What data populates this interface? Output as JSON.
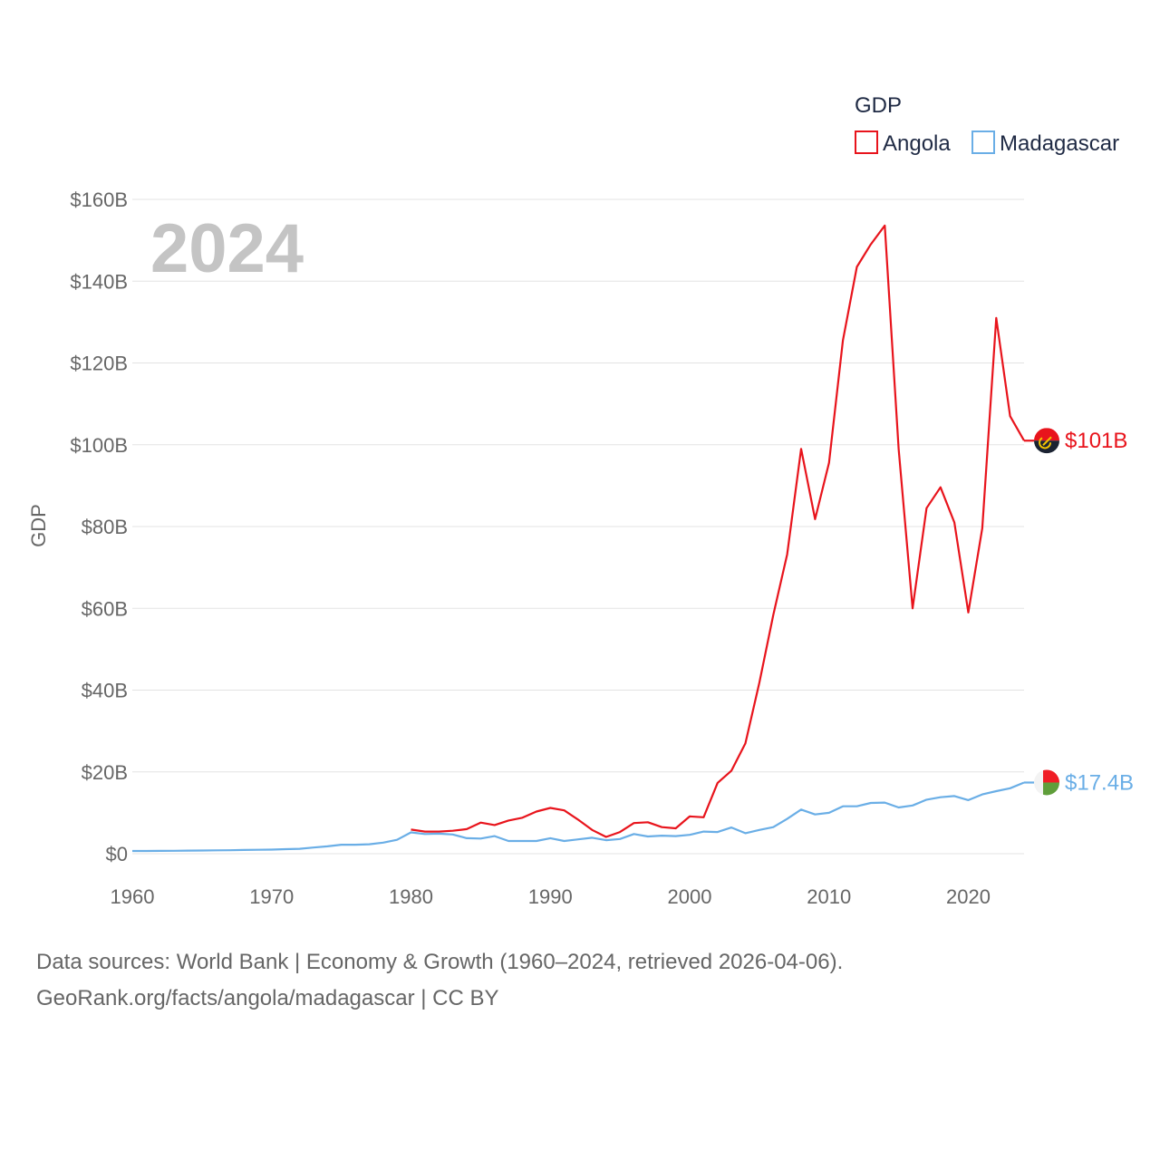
{
  "chart_data": {
    "type": "line",
    "title": "",
    "xlabel": "",
    "ylabel": "GDP",
    "year_label": "2024",
    "legend_title": "GDP",
    "legend_position": "top-right",
    "xlim": [
      1960,
      2024
    ],
    "ylim": [
      0,
      160
    ],
    "x_ticks": [
      1960,
      1970,
      1980,
      1990,
      2000,
      2010,
      2020
    ],
    "y_ticks": [
      0,
      20,
      40,
      60,
      80,
      100,
      120,
      140,
      160
    ],
    "y_tick_labels": [
      "$0",
      "$20B",
      "$40B",
      "$60B",
      "$80B",
      "$100B",
      "$120B",
      "$140B",
      "$160B"
    ],
    "units": "billion USD",
    "series": [
      {
        "name": "Angola",
        "color": "#e8141c",
        "end_label": "$101B",
        "flag_icon": "angola-flag-icon",
        "x": [
          1980,
          1981,
          1982,
          1983,
          1984,
          1985,
          1986,
          1987,
          1988,
          1989,
          1990,
          1991,
          1992,
          1993,
          1994,
          1995,
          1996,
          1997,
          1998,
          1999,
          2000,
          2001,
          2002,
          2003,
          2004,
          2005,
          2006,
          2007,
          2008,
          2009,
          2010,
          2011,
          2012,
          2013,
          2014,
          2015,
          2016,
          2017,
          2018,
          2019,
          2020,
          2021,
          2022,
          2023,
          2024
        ],
        "values": [
          5.9,
          5.4,
          5.4,
          5.6,
          6.0,
          7.6,
          7.0,
          8.1,
          8.8,
          10.3,
          11.2,
          10.6,
          8.3,
          5.8,
          4.1,
          5.3,
          7.5,
          7.7,
          6.5,
          6.2,
          9.1,
          8.9,
          17.3,
          20.3,
          27.0,
          41.8,
          58.4,
          73.2,
          99.0,
          81.8,
          95.6,
          125.5,
          143.5,
          149.0,
          153.6,
          99.0,
          60.0,
          84.5,
          89.6,
          81.0,
          59.0,
          79.6,
          131.0,
          107.0,
          101.0
        ]
      },
      {
        "name": "Madagascar",
        "color": "#6aaee6",
        "end_label": "$17.4B",
        "flag_icon": "madagascar-flag-icon",
        "x": [
          1960,
          1961,
          1962,
          1963,
          1964,
          1965,
          1966,
          1967,
          1968,
          1969,
          1970,
          1971,
          1972,
          1973,
          1974,
          1975,
          1976,
          1977,
          1978,
          1979,
          1980,
          1981,
          1982,
          1983,
          1984,
          1985,
          1986,
          1987,
          1988,
          1989,
          1990,
          1991,
          1992,
          1993,
          1994,
          1995,
          1996,
          1997,
          1998,
          1999,
          2000,
          2001,
          2002,
          2003,
          2004,
          2005,
          2006,
          2007,
          2008,
          2009,
          2010,
          2011,
          2012,
          2013,
          2014,
          2015,
          2016,
          2017,
          2018,
          2019,
          2020,
          2021,
          2022,
          2023,
          2024
        ],
        "values": [
          0.67,
          0.67,
          0.69,
          0.71,
          0.75,
          0.77,
          0.81,
          0.84,
          0.9,
          0.96,
          1.0,
          1.1,
          1.2,
          1.5,
          1.8,
          2.2,
          2.2,
          2.3,
          2.7,
          3.4,
          5.2,
          4.8,
          4.9,
          4.7,
          3.8,
          3.7,
          4.3,
          3.1,
          3.1,
          3.1,
          3.8,
          3.1,
          3.5,
          3.9,
          3.3,
          3.6,
          4.8,
          4.2,
          4.4,
          4.3,
          4.6,
          5.4,
          5.3,
          6.4,
          5.0,
          5.8,
          6.5,
          8.5,
          10.8,
          9.6,
          10.0,
          11.6,
          11.6,
          12.4,
          12.5,
          11.3,
          11.8,
          13.2,
          13.8,
          14.1,
          13.1,
          14.5,
          15.3,
          16.0,
          17.4
        ]
      }
    ]
  },
  "footer": {
    "line1": "Data sources: World Bank | Economy & Growth (1960–2024, retrieved 2026-04-06).",
    "line2": "GeoRank.org/facts/angola/madagascar | CC BY"
  }
}
